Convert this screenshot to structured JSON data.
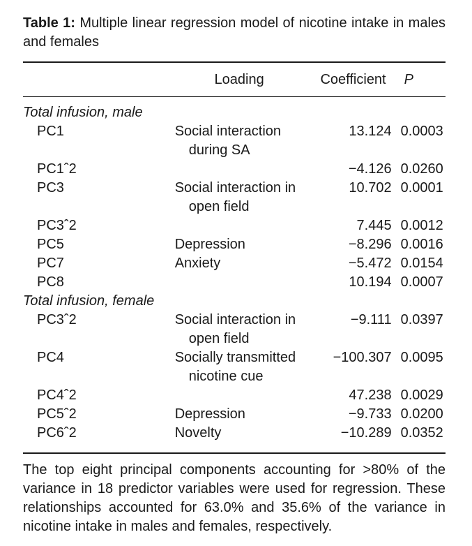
{
  "caption": {
    "label": "Table 1:",
    "text": " Multiple linear regression model of nicotine intake in males and females"
  },
  "headers": {
    "loading": "Loading",
    "coefficient": "Coefficient",
    "p": "P"
  },
  "groups": [
    {
      "title": "Total infusion, male",
      "rows": [
        {
          "pc": "PC1",
          "loading": "Social interaction during SA",
          "coefficient": "13.124",
          "p": "0.0003"
        },
        {
          "pc": "PC1ˆ2",
          "loading": "",
          "coefficient": "−4.126",
          "p": "0.0260"
        },
        {
          "pc": "PC3",
          "loading": "Social interaction in open field",
          "coefficient": "10.702",
          "p": "0.0001"
        },
        {
          "pc": "PC3ˆ2",
          "loading": "",
          "coefficient": "7.445",
          "p": "0.0012"
        },
        {
          "pc": "PC5",
          "loading": "Depression",
          "coefficient": "−8.296",
          "p": "0.0016"
        },
        {
          "pc": "PC7",
          "loading": "Anxiety",
          "coefficient": "−5.472",
          "p": "0.0154"
        },
        {
          "pc": "PC8",
          "loading": "",
          "coefficient": "10.194",
          "p": "0.0007"
        }
      ]
    },
    {
      "title": "Total infusion, female",
      "rows": [
        {
          "pc": "PC3ˆ2",
          "loading": "Social interaction in open field",
          "coefficient": "−9.111",
          "p": "0.0397"
        },
        {
          "pc": "PC4",
          "loading": "Socially transmitted nicotine cue",
          "coefficient": "−100.307",
          "p": "0.0095"
        },
        {
          "pc": "PC4ˆ2",
          "loading": "",
          "coefficient": "47.238",
          "p": "0.0029"
        },
        {
          "pc": "PC5ˆ2",
          "loading": "Depression",
          "coefficient": "−9.733",
          "p": "0.0200"
        },
        {
          "pc": "PC6ˆ2",
          "loading": "Novelty",
          "coefficient": "−10.289",
          "p": "0.0352"
        }
      ]
    }
  ],
  "footnote": "The top eight principal components accounting for >80% of the variance in 18 predictor variables were used for regression. These relationships accounted for 63.0% and 35.6% of the variance in nicotine intake in males and females, respectively."
}
